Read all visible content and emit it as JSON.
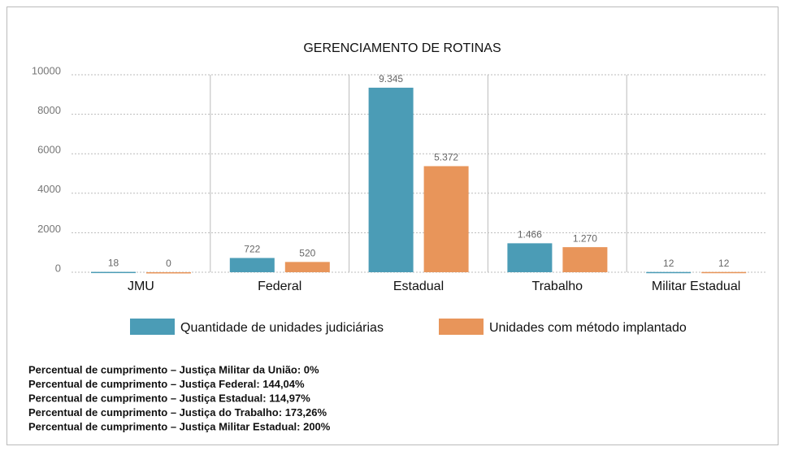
{
  "chart_data": {
    "type": "bar",
    "title": "GERENCIAMENTO DE ROTINAS",
    "categories": [
      "JMU",
      "Federal",
      "Estadual",
      "Trabalho",
      "Militar Estadual"
    ],
    "series": [
      {
        "name": "Quantidade de unidades judiciárias",
        "color": "#4b9cb6",
        "values": [
          18,
          722,
          9345,
          1466,
          12
        ],
        "value_labels": [
          "18",
          "722",
          "9.345",
          "1.466",
          "12"
        ]
      },
      {
        "name": "Unidades com método implantado",
        "color": "#e8955a",
        "values": [
          0,
          520,
          5372,
          1270,
          12
        ],
        "value_labels": [
          "0",
          "520",
          "5.372",
          "1.270",
          "12"
        ]
      }
    ],
    "ylim": [
      0,
      10000
    ],
    "yticks": [
      0,
      2000,
      4000,
      6000,
      8000,
      10000
    ],
    "grid": true,
    "annotations": [
      "Percentual de cumprimento – Justiça Militar da União: 0%",
      "Percentual de cumprimento – Justiça Federal: 144,04%",
      "Percentual de cumprimento – Justiça Estadual: 114,97%",
      "Percentual de cumprimento – Justiça do Trabalho: 173,26%",
      "Percentual de cumprimento – Justiça Militar Estadual: 200%"
    ]
  }
}
